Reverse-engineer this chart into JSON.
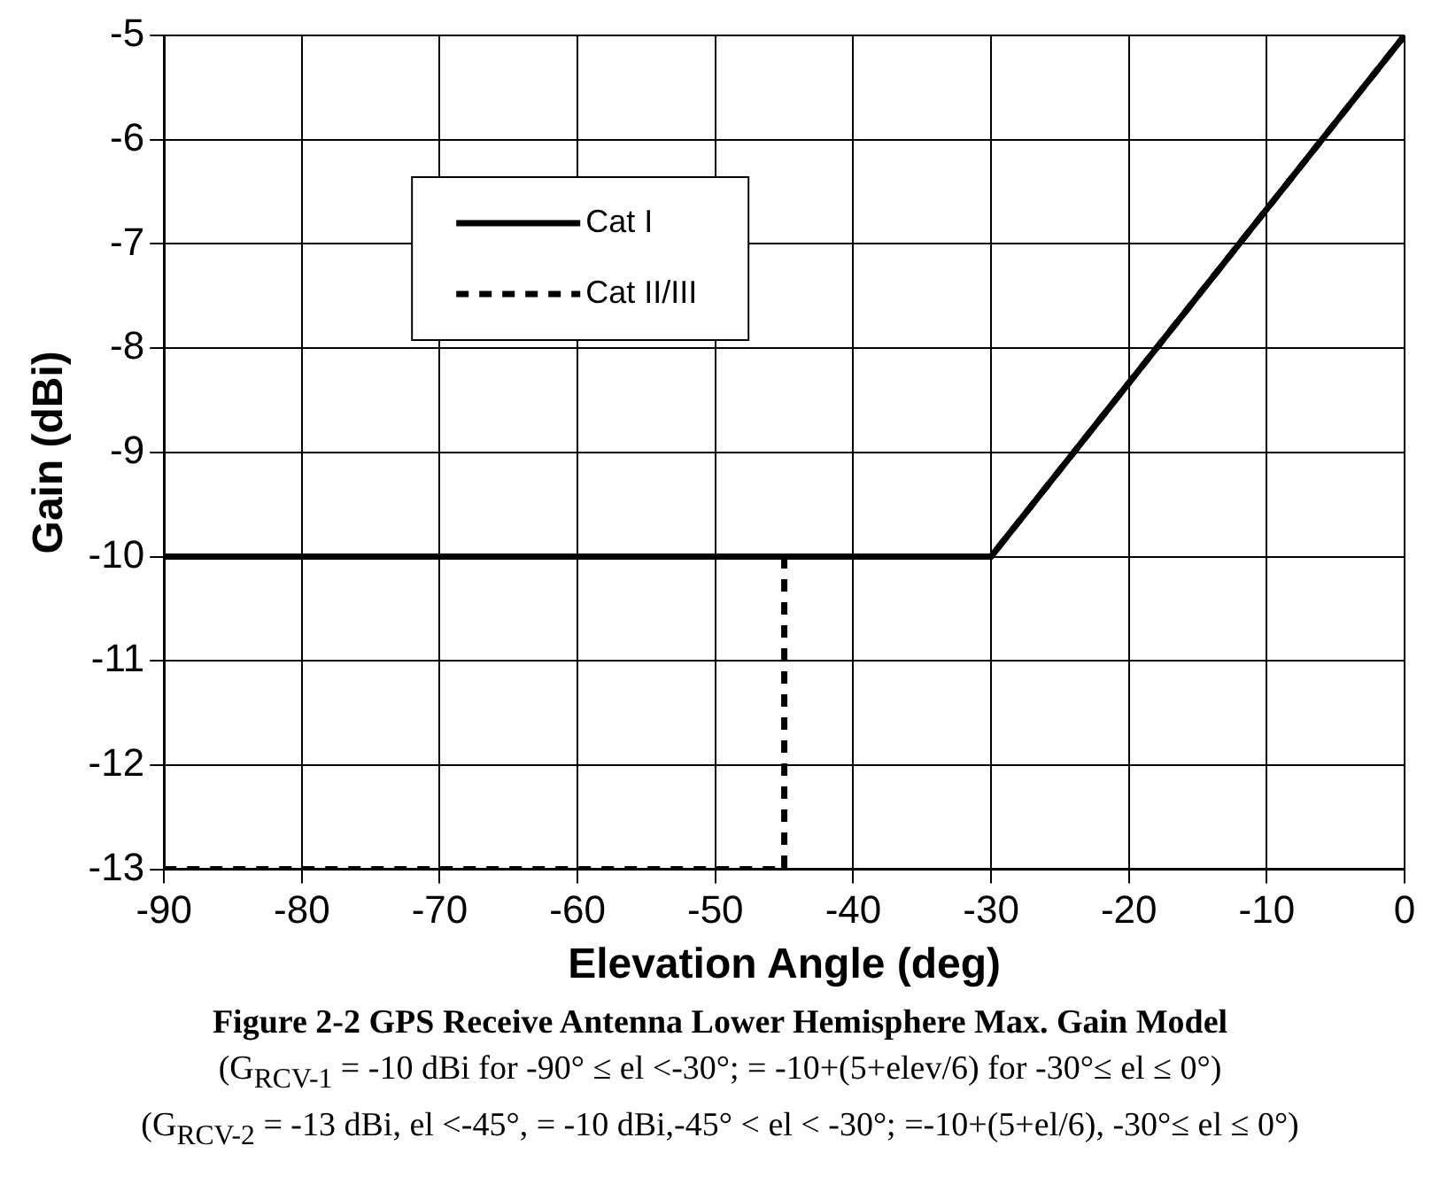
{
  "chart_data": {
    "type": "line",
    "title": "Figure 2-2 GPS Receive Antenna Lower Hemisphere Max. Gain Model",
    "subtitle": "(G$_{RCV-1}$ = -10 dBi for -90° ≤ el  <-30°;   = -10+(5+elev/6) for -30°≤ el ≤ 0°)",
    "annotations": [
      "(G$_{RCV-2}$ = -13 dBi, el <-45°, = -10 dBi,-45° < el < -30°; =-10+(5+el/6), -30°≤ el ≤ 0°)"
    ],
    "xlabel": "Elevation Angle (deg)",
    "ylabel": "Gain (dBi)",
    "series": [
      {
        "name": "Cat I",
        "color": "#000000",
        "line_style": "solid",
        "x": [
          -90,
          -30,
          0
        ],
        "values": [
          -10,
          -10,
          -5
        ]
      },
      {
        "name": "Cat II/III",
        "color": "#000000",
        "line_style": "dashed",
        "x": [
          -90,
          -45,
          -45,
          -30,
          0
        ],
        "values": [
          -13,
          -13,
          -10,
          -10,
          -5
        ]
      }
    ],
    "xlim": [
      -90,
      0
    ],
    "xticks": [
      -90,
      -80,
      -70,
      -60,
      -50,
      -40,
      -30,
      -20,
      -10,
      0
    ],
    "ylim": [
      -13,
      -5
    ],
    "yticks": [
      -13,
      -12,
      -11,
      -10,
      -9,
      -8,
      -7,
      -6,
      -5
    ],
    "grid": true,
    "legend": "top left",
    "marker": "none"
  }
}
